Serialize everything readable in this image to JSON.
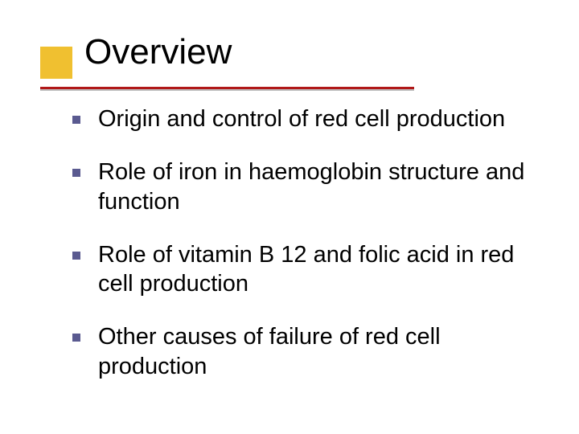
{
  "slide": {
    "title": "Overview",
    "bullets": [
      "Origin and control of red cell production",
      "Role of iron in haemoglobin structure and function",
      "Role of vitamin B 12 and folic acid in red cell production",
      "Other causes of failure of red cell production"
    ]
  },
  "styling": {
    "background_color": "#ffffff",
    "title_fontsize": 44,
    "title_color": "#000000",
    "bullet_fontsize": 29,
    "bullet_color": "#000000",
    "bullet_marker_color": "#5a5a90",
    "bullet_marker_size": 10,
    "accent_square_color": "#f0c030",
    "accent_square_size": 40,
    "underline_red": "#b01818",
    "underline_gray": "#bdbdbd",
    "underline_width": 465,
    "font_family": "Comic Sans MS",
    "bullet_spacing": 30
  }
}
